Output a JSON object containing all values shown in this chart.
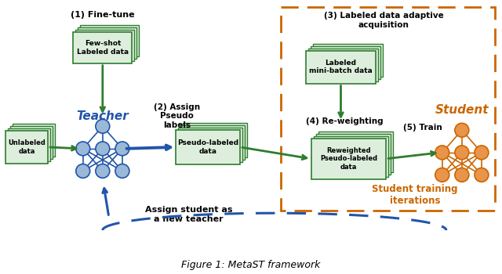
{
  "title": "Figure 1: MetaST framework",
  "title_fontsize": 9,
  "background_color": "#ffffff",
  "green_color": "#2e7d2e",
  "blue_color": "#2255aa",
  "orange_color": "#cc6600",
  "node_blue_fill": "#9ab8d8",
  "node_blue_edge": "#2255aa",
  "node_orange_fill": "#e8944a",
  "node_orange_edge": "#cc6600",
  "box_fill": "#e8f5e0",
  "box_edge": "#2e7d2e",
  "label_fine_tune": "(1) Fine-tune",
  "label_assign_pseudo": "(2) Assign\nPseudo\nlabels",
  "label_labeled_data_acq": "(3) Labeled data adaptive\nacquisition",
  "label_reweighting": "(4) Re-weighting",
  "label_train": "(5) Train",
  "label_teacher": "Teacher",
  "label_student": "Student",
  "label_unlabeled": "Unlabeled\ndata",
  "label_few_shot": "Few-shot\nLabeled data",
  "label_pseudo_labeled": "Pseudo-labeled\ndata",
  "label_labeled_mini": "Labeled\nmini-batch data",
  "label_reweighted": "Reweighted\nPseudo-labeled\ndata",
  "label_assign_new_teacher": "Assign student as\na new teacher",
  "label_student_training": "Student training\niterations"
}
